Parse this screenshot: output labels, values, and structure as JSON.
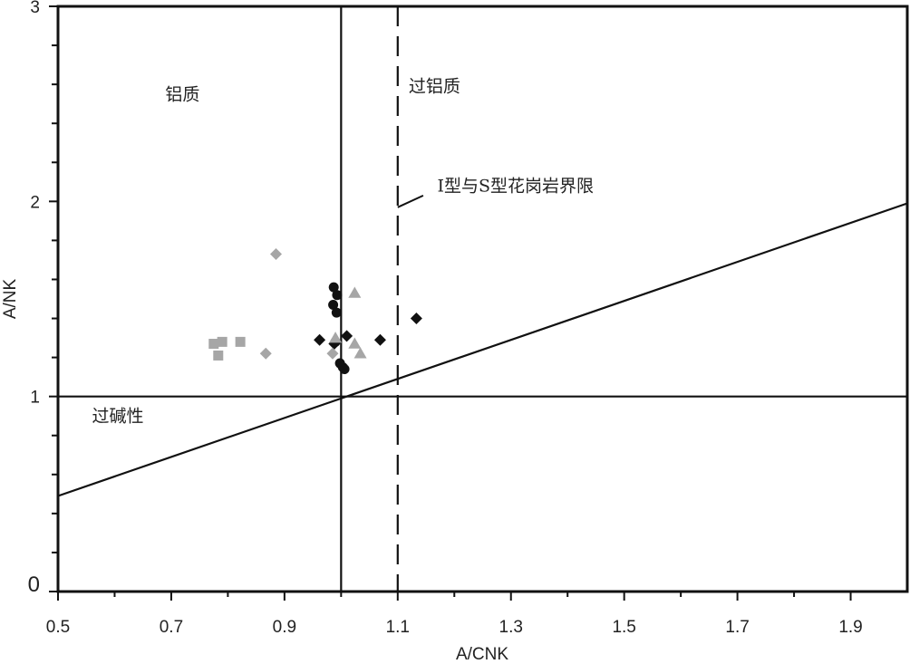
{
  "chart_data": {
    "type": "scatter",
    "xlabel": "A/CNK",
    "ylabel": "A/NK",
    "xlim": [
      0.5,
      2.0
    ],
    "ylim": [
      0,
      3
    ],
    "x_ticks": [
      0.5,
      0.7,
      0.9,
      1.1,
      1.3,
      1.5,
      1.7,
      1.9
    ],
    "x_tick_labels": [
      "0.5",
      "0.7",
      "0.9",
      "1.1",
      "1.3",
      "1.5",
      "1.7",
      "1.9"
    ],
    "y_ticks": [
      0,
      1,
      2,
      3
    ],
    "y_tick_labels": [
      "0",
      "1",
      "2",
      "3"
    ],
    "grid": false,
    "reference_lines": {
      "vertical_solid_x": 1.0,
      "vertical_dashed_x": 1.1,
      "horizontal_y": 1.0,
      "diagonal": {
        "from": [
          0.5,
          0.49
        ],
        "to": [
          2.0,
          1.99
        ]
      }
    },
    "region_labels": {
      "metaluminous": "铝质",
      "peraluminous": "过铝质",
      "peralkaline": "过碱性",
      "boundary": "I型与S型花岗岩界限"
    },
    "label_anchor_data": {
      "metaluminous": [
        0.72,
        2.52
      ],
      "peraluminous": [
        1.165,
        2.56
      ],
      "peralkaline": [
        0.56,
        0.87
      ],
      "boundary": [
        1.17,
        2.05
      ]
    },
    "boundary_pointer": {
      "from": [
        1.1,
        1.97
      ],
      "to": [
        1.145,
        2.03
      ]
    },
    "series": [
      {
        "marker": "circle",
        "color": "#111111",
        "points": [
          [
            0.987,
            1.56
          ],
          [
            0.993,
            1.52
          ],
          [
            0.986,
            1.47
          ],
          [
            0.992,
            1.43
          ],
          [
            0.99,
            1.28
          ],
          [
            0.998,
            1.17
          ],
          [
            1.003,
            1.15
          ],
          [
            1.006,
            1.14
          ]
        ]
      },
      {
        "marker": "diamond",
        "color": "#111111",
        "points": [
          [
            0.962,
            1.29
          ],
          [
            0.988,
            1.27
          ],
          [
            1.01,
            1.31
          ],
          [
            1.069,
            1.29
          ],
          [
            1.133,
            1.4
          ]
        ]
      },
      {
        "marker": "triangle",
        "color": "#a6a6a6",
        "points": [
          [
            1.024,
            1.53
          ],
          [
            0.99,
            1.3
          ],
          [
            1.024,
            1.27
          ],
          [
            1.034,
            1.22
          ]
        ]
      },
      {
        "marker": "diamond",
        "color": "#a6a6a6",
        "points": [
          [
            0.885,
            1.73
          ],
          [
            0.867,
            1.22
          ],
          [
            0.985,
            1.22
          ]
        ]
      },
      {
        "marker": "square",
        "color": "#a6a6a6",
        "points": [
          [
            0.775,
            1.27
          ],
          [
            0.79,
            1.28
          ],
          [
            0.783,
            1.21
          ],
          [
            0.822,
            1.28
          ]
        ]
      }
    ]
  }
}
